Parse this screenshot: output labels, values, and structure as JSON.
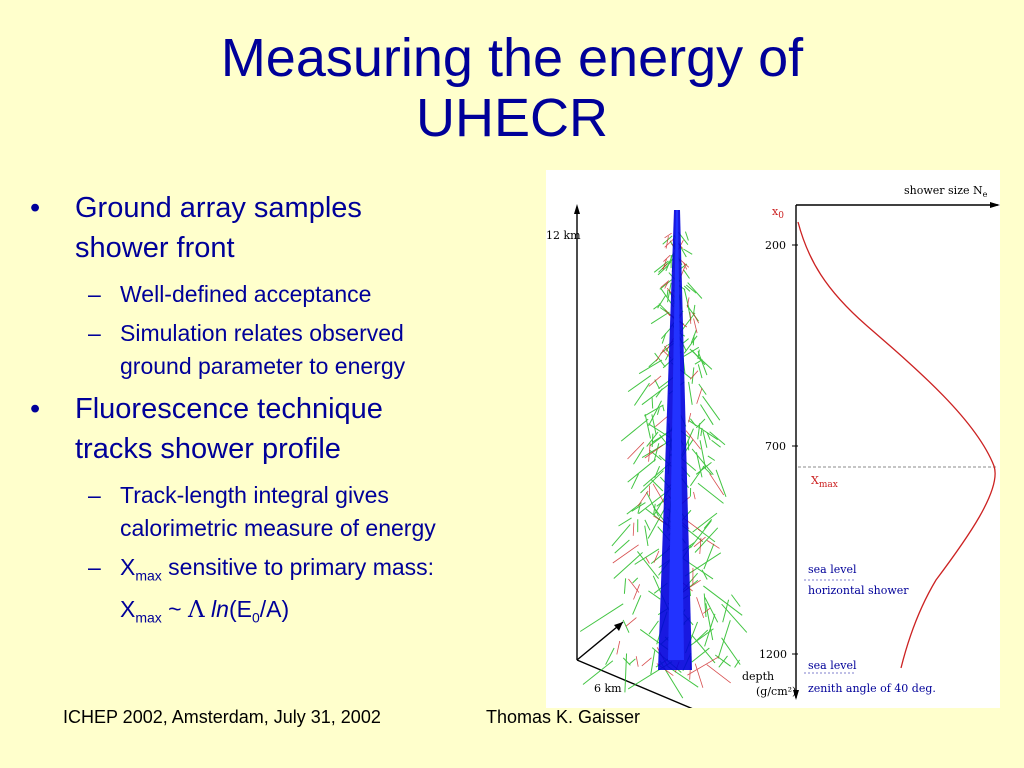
{
  "title": {
    "line1": "Measuring the energy of",
    "line2": "UHECR"
  },
  "bullets": [
    {
      "line1": "Ground array samples",
      "line2": "shower front",
      "subs": [
        {
          "line1": "Well-defined acceptance"
        },
        {
          "line1": "Simulation relates observed",
          "line2": "ground parameter to energy"
        }
      ]
    },
    {
      "line1": "Fluorescence technique",
      "line2": "tracks shower profile",
      "subs": [
        {
          "line1": "Track-length integral gives",
          "line2": "calorimetric measure of energy"
        },
        {
          "x_main": "X",
          "x_sub": "max",
          "rest": " sensitive to primary mass:",
          "f_x": "X",
          "f_sub": "max",
          "f_tilde": " ~ ",
          "f_lambda": "Λ",
          "f_ln": "ln",
          "f_open": "(E",
          "f_esub": "0",
          "f_close": "/A)"
        }
      ]
    }
  ],
  "bullet_glyph": "•",
  "dash_glyph": "–",
  "footer": {
    "left": "ICHEP 2002, Amsterdam, July 31, 2002",
    "right": "Thomas K. Gaisser"
  },
  "figure": {
    "label_12km": "12 km",
    "label_6km": "6 km",
    "shower_size": "shower size  N",
    "shower_size_sub": "e",
    "x0": "x",
    "x0_sub": "0",
    "tick_200": "200",
    "tick_700": "700",
    "tick_1200": "1200",
    "xmax": "X",
    "xmax_sub": "max",
    "sea_level_1": "sea level",
    "horizontal_shower": "horizontal shower",
    "sea_level_2": "sea level",
    "zenith": "zenith angle of 40 deg.",
    "depth": "depth",
    "depth_units": "(g/cm²)"
  },
  "colors": {
    "title": "#000099",
    "background": "#ffffcc",
    "profile_curve": "#cc2222",
    "annotation": "#000099",
    "shower_core": "#0000dd",
    "shower_tracks": "#22bb22"
  }
}
